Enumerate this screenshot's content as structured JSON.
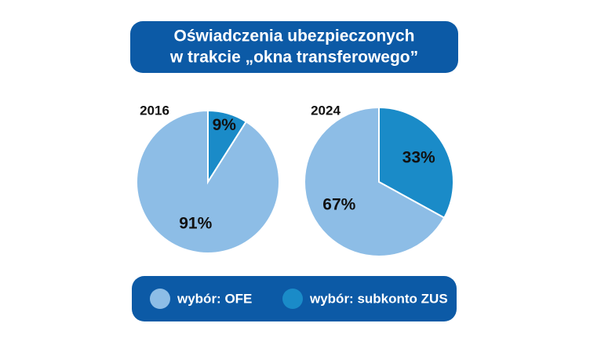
{
  "title": [
    "Oświadczenia ubezpieczonych",
    "w trakcie „okna transferowego”"
  ],
  "legend": {
    "entries": [
      {
        "label": "wybór: OFE",
        "color": "#8dbde6"
      },
      {
        "label": "wybór: subkonto ZUS",
        "color": "#1a8bc8"
      }
    ]
  },
  "chart_data": [
    {
      "type": "pie",
      "title": "2016",
      "values": [
        9,
        91
      ],
      "value_labels": [
        "9%",
        "91%"
      ]
    },
    {
      "type": "pie",
      "title": "2024",
      "values": [
        33,
        67
      ],
      "value_labels": [
        "33%",
        "67%"
      ]
    }
  ]
}
